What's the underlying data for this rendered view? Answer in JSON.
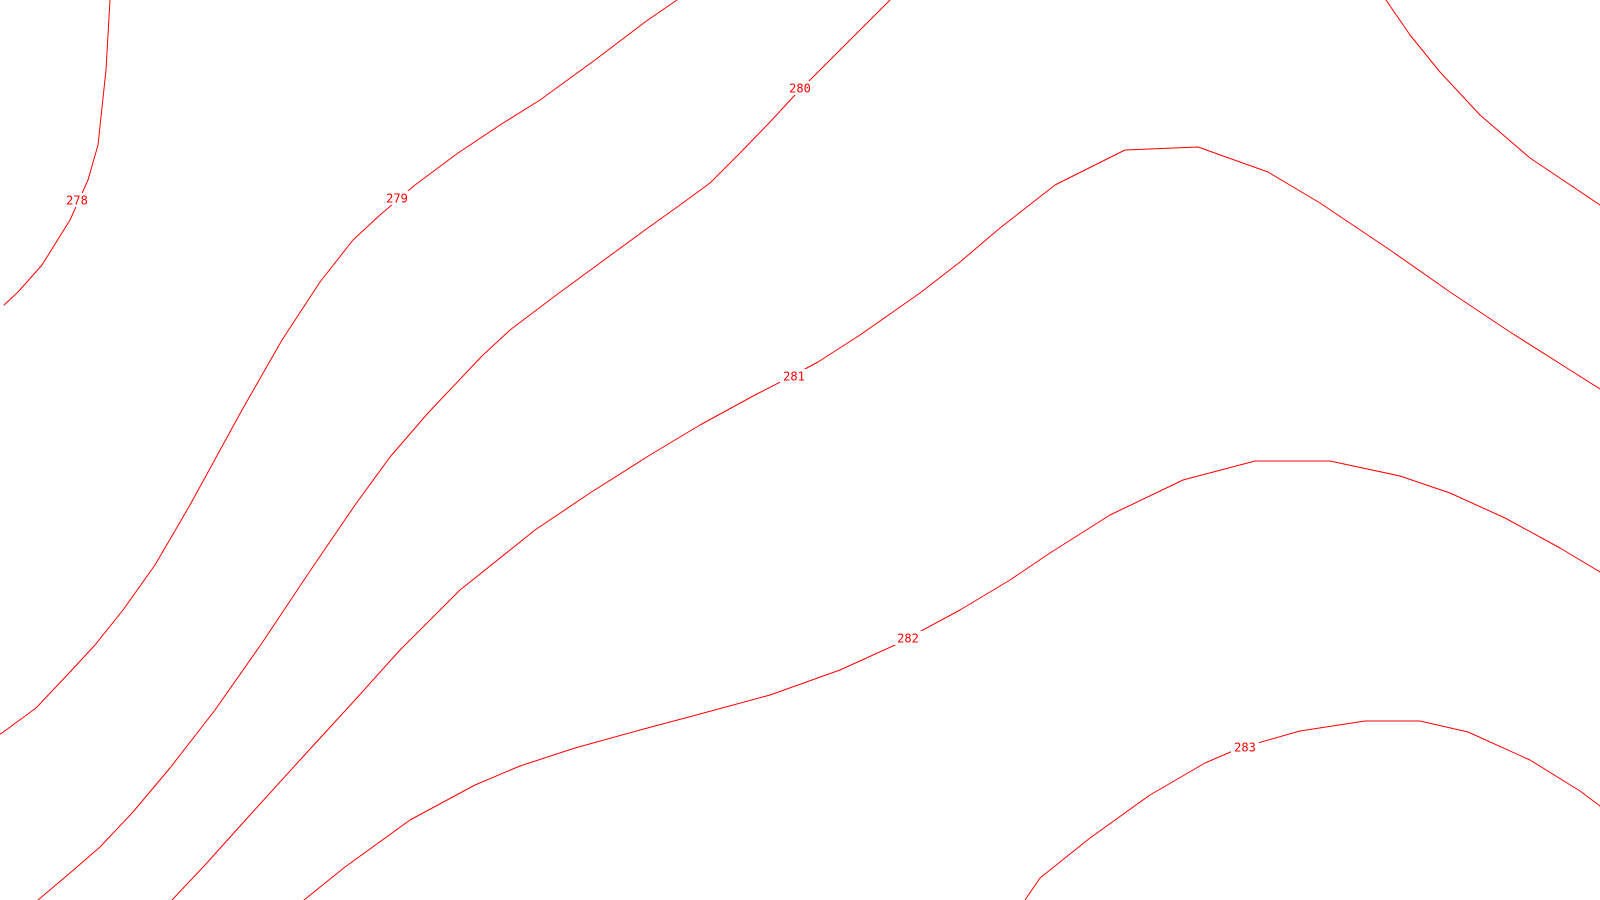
{
  "map": {
    "line_color": "#ff0000",
    "background": "#ffffff",
    "contours": [
      {
        "level": "278",
        "label": "278"
      },
      {
        "level": "279",
        "label": "279"
      },
      {
        "level": "280",
        "label": "280"
      },
      {
        "level": "281",
        "label": "281"
      },
      {
        "level": "282",
        "label": "282"
      },
      {
        "level": "283",
        "label": "283"
      }
    ]
  }
}
